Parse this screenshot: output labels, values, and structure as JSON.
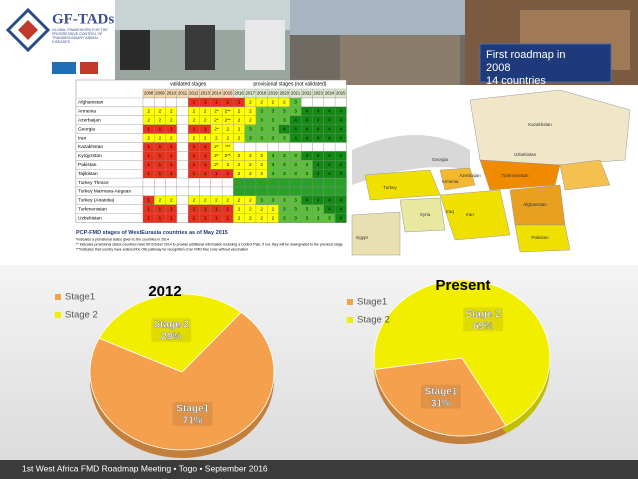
{
  "logo": {
    "title": "GF-TADs",
    "subtitle": "GLOBAL FRAMEWORK FOR THE PROGRESSIVE CONTROL OF TRANSBOUNDARY ANIMAL DISEASES"
  },
  "callout": {
    "line1": "First roadmap in",
    "line2": "2008",
    "line3": "14 countries"
  },
  "table": {
    "group_headers": [
      "validated stages",
      "provisional stages (not validated)"
    ],
    "years": [
      "2008",
      "2009",
      "2010",
      "2011",
      "2012",
      "2013",
      "2014",
      "2015",
      "2016",
      "2017",
      "2018",
      "2019",
      "2020",
      "2021",
      "2022",
      "2023",
      "2024",
      "2025"
    ],
    "rows": [
      {
        "country": "Afghanistan",
        "cells": [
          null,
          null,
          null,
          null,
          "1",
          "1",
          "1",
          "1",
          "1",
          "2",
          "2",
          "2",
          "2",
          "3",
          null,
          null,
          null,
          null
        ]
      },
      {
        "country": "Armenia",
        "cells": [
          "2",
          "2",
          "2",
          null,
          "2",
          "2",
          "2*",
          "2**",
          "2",
          "2",
          "3",
          "3",
          "3",
          "3",
          "4",
          "4",
          "4",
          "4"
        ]
      },
      {
        "country": "Azerbaijan",
        "cells": [
          "2",
          "2",
          "2",
          null,
          "2",
          "2",
          "2*",
          "2**",
          "2",
          "2",
          "3",
          "3",
          "3",
          "4",
          "4",
          "4",
          "4",
          "4"
        ]
      },
      {
        "country": "Georgia",
        "cells": [
          "1",
          "1",
          "1",
          null,
          "1",
          "1",
          "2*",
          "2",
          "2",
          "3",
          "3",
          "3",
          "4",
          "4",
          "4",
          "4",
          "4",
          "4"
        ]
      },
      {
        "country": "Iran",
        "cells": [
          "2",
          "2",
          "2",
          null,
          "2",
          "2",
          "2",
          "2",
          "2",
          "3",
          "3",
          "3",
          "3",
          "4",
          "4",
          "4",
          "4",
          "4"
        ]
      },
      {
        "country": "Kazakhstan",
        "cells": [
          "1",
          "1",
          "1",
          null,
          "1",
          "1",
          "2*",
          "***",
          null,
          null,
          null,
          null,
          null,
          null,
          null,
          null,
          null,
          null
        ]
      },
      {
        "country": "Kyrgyzstan",
        "cells": [
          "1",
          "1",
          "1",
          null,
          "1",
          "1",
          "2*",
          "2**",
          "2",
          "2",
          "2",
          "3",
          "3",
          "3",
          "4",
          "4",
          "4",
          "4"
        ]
      },
      {
        "country": "Pakistan",
        "cells": [
          "1",
          "1",
          "1",
          null,
          "1",
          "1",
          "2*",
          "2",
          "2",
          "2",
          "2",
          "3",
          "3",
          "3",
          "3",
          "4",
          "4",
          "4"
        ]
      },
      {
        "country": "Tajikistan",
        "cells": [
          "1",
          "1",
          "1",
          null,
          "1",
          "1",
          "1",
          "1",
          "2",
          "2",
          "2",
          "3",
          "3",
          "3",
          "3",
          "4",
          "4",
          "4"
        ]
      },
      {
        "country": "Turkey Thrace",
        "cells": [
          null,
          null,
          null,
          null,
          null,
          null,
          null,
          null,
          null,
          null,
          null,
          null,
          null,
          null,
          null,
          null,
          null,
          null
        ]
      },
      {
        "country": "Turkey Marmara-Aegean",
        "cells": [
          null,
          null,
          null,
          null,
          null,
          null,
          null,
          null,
          null,
          null,
          null,
          null,
          null,
          null,
          null,
          null,
          null,
          null
        ]
      },
      {
        "country": "Turkey (Anatolia)",
        "cells": [
          "1",
          "2",
          "2",
          null,
          "2",
          "2",
          "2",
          "2",
          "2",
          "2",
          "3",
          "3",
          "3",
          "3",
          "4",
          "4",
          "4",
          "4"
        ]
      },
      {
        "country": "Turkmenistan",
        "cells": [
          "1",
          "1",
          "1",
          null,
          "1",
          "1",
          "1",
          "1",
          "2",
          "2",
          "2",
          "2",
          "3",
          "3",
          "3",
          "3",
          "4",
          "4"
        ]
      },
      {
        "country": "Uzbekistan",
        "cells": [
          "1",
          "1",
          "1",
          null,
          "1",
          "1",
          "1",
          "1",
          "2",
          "2",
          "2",
          "2",
          "3",
          "3",
          "3",
          "3",
          "3",
          "4"
        ]
      }
    ],
    "caption": "PCP-FMD stages of WestEurasia countries as of May 2015",
    "footnotes": [
      "*indicates a provisional status given to the countries in 2014",
      "** indicates provisional status countries have till October 2014 to provide additional information including a Control Plan; if not, they will be downgraded to the previous stage",
      "***indicates that country have entered the OIE pathway for recognition of an FMD-free zone without vaccination"
    ]
  },
  "map": {
    "labels": [
      "Kazakhstan",
      "Turkey",
      "Georgia",
      "Azerbaijan",
      "Armenia",
      "Uzbekistan",
      "Turkmenistan",
      "Syria",
      "Iraq",
      "Iran",
      "Afghanistan",
      "Pakistan",
      "Egypt"
    ]
  },
  "chart_data": [
    {
      "type": "pie",
      "title": "2012",
      "categories": [
        "Stage1",
        "Stage 2"
      ],
      "values": [
        71,
        29
      ],
      "value_labels": [
        "71%",
        "29%"
      ],
      "colors": [
        "#f4a04c",
        "#f2ee00"
      ],
      "legend": "top-left"
    },
    {
      "type": "pie",
      "title": "Present",
      "categories": [
        "Stage1",
        "Stage 2"
      ],
      "values": [
        31,
        69
      ],
      "value_labels": [
        "31%",
        "69%"
      ],
      "colors": [
        "#f4a04c",
        "#f2ee00"
      ],
      "legend": "top-left"
    }
  ],
  "footer": "1st West Africa FMD Roadmap Meeting • Togo • September 2016"
}
